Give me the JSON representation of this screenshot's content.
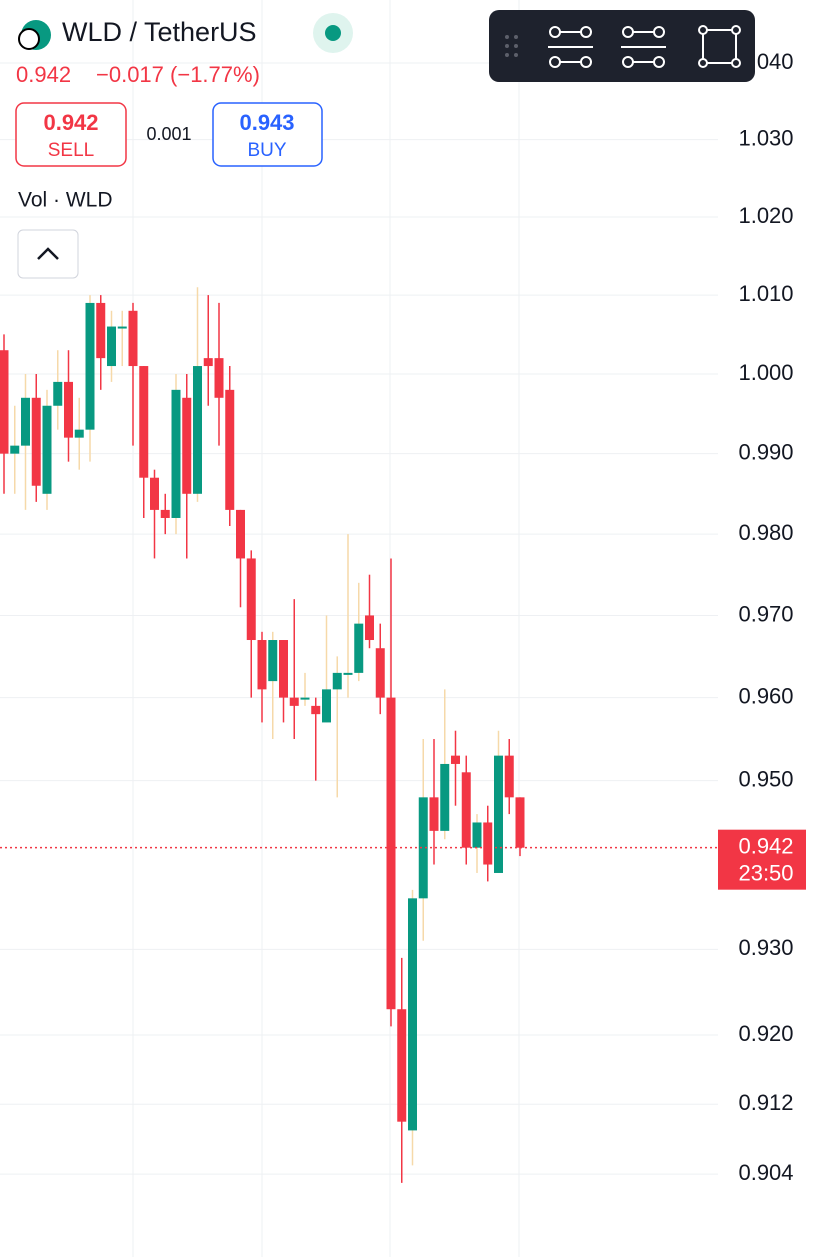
{
  "header": {
    "symbol": "WLD / TetherUS",
    "price": "0.942",
    "change": "−0.017 (−1.77%)",
    "sell_price": "0.942",
    "sell_label": "SELL",
    "spread": "0.001",
    "buy_price": "0.943",
    "buy_label": "BUY",
    "indicator": "Vol · WLD"
  },
  "chart_data": {
    "type": "candlestick",
    "log_scale": true,
    "grid": true,
    "up_color": "#089981",
    "down_color": "#f23645",
    "up_wick_color": "#f6d9a9",
    "ylim": [
      0.8946,
      1.0483
    ],
    "yticks": [
      {
        "value": 1.04,
        "label": "1.040"
      },
      {
        "value": 1.03,
        "label": "1.030"
      },
      {
        "value": 1.02,
        "label": "1.020"
      },
      {
        "value": 1.01,
        "label": "1.010"
      },
      {
        "value": 1.0,
        "label": "1.000"
      },
      {
        "value": 0.99,
        "label": "0.990"
      },
      {
        "value": 0.98,
        "label": "0.980"
      },
      {
        "value": 0.97,
        "label": "0.970"
      },
      {
        "value": 0.96,
        "label": "0.960"
      },
      {
        "value": 0.95,
        "label": "0.950"
      },
      {
        "value": 0.93,
        "label": "0.930"
      },
      {
        "value": 0.92,
        "label": "0.920"
      },
      0.912,
      0.904
    ],
    "last_price": 0.942,
    "countdown": "23:50",
    "open": [
      1.003,
      0.99,
      0.991,
      0.997,
      0.985,
      0.996,
      0.999,
      0.992,
      0.993,
      1.009,
      1.001,
      1.006,
      1.008,
      1.001,
      0.987,
      0.983,
      0.982,
      0.997,
      0.985,
      1.002,
      1.002,
      0.998,
      0.983,
      0.977,
      0.967,
      0.962,
      0.967,
      0.96,
      0.96,
      0.959,
      0.957,
      0.961,
      0.963,
      0.963,
      0.97,
      0.966,
      0.96,
      0.923,
      0.909,
      0.936,
      0.948,
      0.944,
      0.953,
      0.951,
      0.942,
      0.945,
      0.939,
      0.953,
      0.948
    ],
    "high": [
      1.005,
      0.996,
      1.0,
      1.0,
      0.998,
      1.003,
      1.003,
      0.997,
      1.01,
      1.01,
      1.008,
      1.008,
      1.009,
      1.001,
      0.988,
      0.985,
      1.0,
      1.0,
      1.011,
      1.01,
      1.009,
      1.001,
      0.983,
      0.978,
      0.968,
      0.968,
      0.967,
      0.972,
      0.963,
      0.96,
      0.97,
      0.965,
      0.98,
      0.974,
      0.975,
      0.969,
      0.977,
      0.929,
      0.937,
      0.955,
      0.955,
      0.961,
      0.956,
      0.953,
      0.946,
      0.947,
      0.956,
      0.955,
      0.948
    ],
    "low": [
      0.985,
      0.985,
      0.983,
      0.984,
      0.983,
      0.993,
      0.989,
      0.988,
      0.989,
      0.998,
      0.999,
      1.001,
      0.991,
      0.982,
      0.977,
      0.98,
      0.98,
      0.977,
      0.984,
      0.996,
      0.991,
      0.981,
      0.971,
      0.96,
      0.957,
      0.955,
      0.957,
      0.955,
      0.959,
      0.95,
      0.957,
      0.948,
      0.96,
      0.962,
      0.966,
      0.958,
      0.921,
      0.903,
      0.905,
      0.931,
      0.94,
      0.943,
      0.947,
      0.94,
      0.939,
      0.938,
      0.939,
      0.946,
      0.941
    ],
    "close": [
      0.99,
      0.991,
      0.997,
      0.986,
      0.996,
      0.999,
      0.992,
      0.993,
      1.009,
      1.002,
      1.006,
      1.006,
      1.001,
      0.987,
      0.983,
      0.982,
      0.998,
      0.985,
      1.001,
      1.001,
      0.997,
      0.983,
      0.977,
      0.967,
      0.961,
      0.967,
      0.96,
      0.959,
      0.96,
      0.958,
      0.961,
      0.963,
      0.963,
      0.969,
      0.967,
      0.96,
      0.923,
      0.91,
      0.936,
      0.948,
      0.944,
      0.952,
      0.952,
      0.942,
      0.945,
      0.94,
      0.953,
      0.948,
      0.942
    ]
  }
}
